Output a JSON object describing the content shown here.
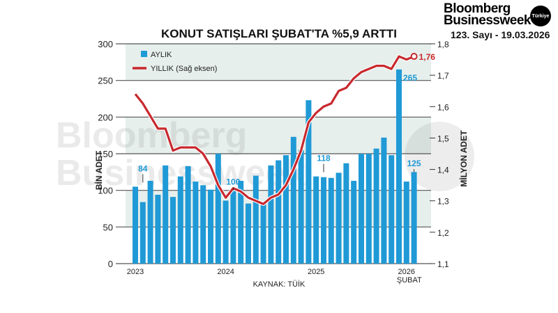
{
  "header": {
    "logo_line1": "Bloomberg",
    "logo_line2": "Businessweek",
    "logo_badge": "Türkiye",
    "issue": "123. Sayı - 19.03.2026"
  },
  "watermark": {
    "line1": "Bloomberg",
    "line2": "Businessweek",
    "badge": "Türkiye"
  },
  "chart_data": {
    "type": "bar+line",
    "title": "KONUT SATIŞLARI ŞUBAT'TA %5,9 ARTTI",
    "ylabel": "BİN ADET",
    "y2label": "MİLYON ADET",
    "source": "KAYNAK: TÜİK",
    "ylim": [
      0,
      300
    ],
    "yticks": [
      "0",
      "50",
      "100",
      "150",
      "200",
      "250",
      "300"
    ],
    "y2lim": [
      1.1,
      1.8
    ],
    "y2ticks": [
      "1,1",
      "1,2",
      "1,3",
      "1,4",
      "1,5",
      "1,6",
      "1,7",
      "1,8"
    ],
    "xtick_labels": [
      {
        "label": "2023",
        "index": 0
      },
      {
        "label": "2024",
        "index": 12
      },
      {
        "label": "2025",
        "index": 24
      },
      {
        "label": "2026",
        "index": 36
      }
    ],
    "last_label": "ŞUBAT",
    "legend_position": "top-left",
    "grid": true,
    "colors": {
      "bars": "#1f9ad6",
      "line": "#c8282d",
      "band": "#e6efec",
      "grid": "#555555"
    },
    "x": [
      "2023-01",
      "2023-02",
      "2023-03",
      "2023-04",
      "2023-05",
      "2023-06",
      "2023-07",
      "2023-08",
      "2023-09",
      "2023-10",
      "2023-11",
      "2023-12",
      "2024-01",
      "2024-02",
      "2024-03",
      "2024-04",
      "2024-05",
      "2024-06",
      "2024-07",
      "2024-08",
      "2024-09",
      "2024-10",
      "2024-11",
      "2024-12",
      "2025-01",
      "2025-02",
      "2025-03",
      "2025-04",
      "2025-05",
      "2025-06",
      "2025-07",
      "2025-08",
      "2025-09",
      "2025-10",
      "2025-11",
      "2025-12",
      "2026-01",
      "2026-02"
    ],
    "series": [
      {
        "name": "AYLIK",
        "type": "bar",
        "axis": "left",
        "values": [
          105,
          84,
          113,
          94,
          134,
          91,
          119,
          133,
          112,
          107,
          101,
          150,
          86,
          100,
          113,
          82,
          120,
          84,
          134,
          141,
          148,
          173,
          155,
          223,
          119,
          118,
          117,
          124,
          137,
          113,
          150,
          150,
          157,
          172,
          148,
          265,
          112,
          125
        ]
      },
      {
        "name": "YILLIK (Sağ eksen)",
        "type": "line",
        "axis": "right",
        "values": [
          1.64,
          1.61,
          1.57,
          1.53,
          1.53,
          1.46,
          1.47,
          1.47,
          1.47,
          1.45,
          1.41,
          1.35,
          1.31,
          1.34,
          1.33,
          1.31,
          1.3,
          1.29,
          1.31,
          1.32,
          1.35,
          1.4,
          1.46,
          1.55,
          1.58,
          1.6,
          1.61,
          1.65,
          1.66,
          1.69,
          1.71,
          1.72,
          1.73,
          1.73,
          1.72,
          1.76,
          1.75,
          1.76
        ]
      }
    ],
    "annotations": [
      {
        "index": 1,
        "text": "84"
      },
      {
        "index": 13,
        "text": "100"
      },
      {
        "index": 25,
        "text": "118"
      },
      {
        "index": 35,
        "text": "265"
      },
      {
        "index": 37,
        "text": "125"
      },
      {
        "index": 37,
        "text": "1,76",
        "series": "line"
      }
    ]
  }
}
